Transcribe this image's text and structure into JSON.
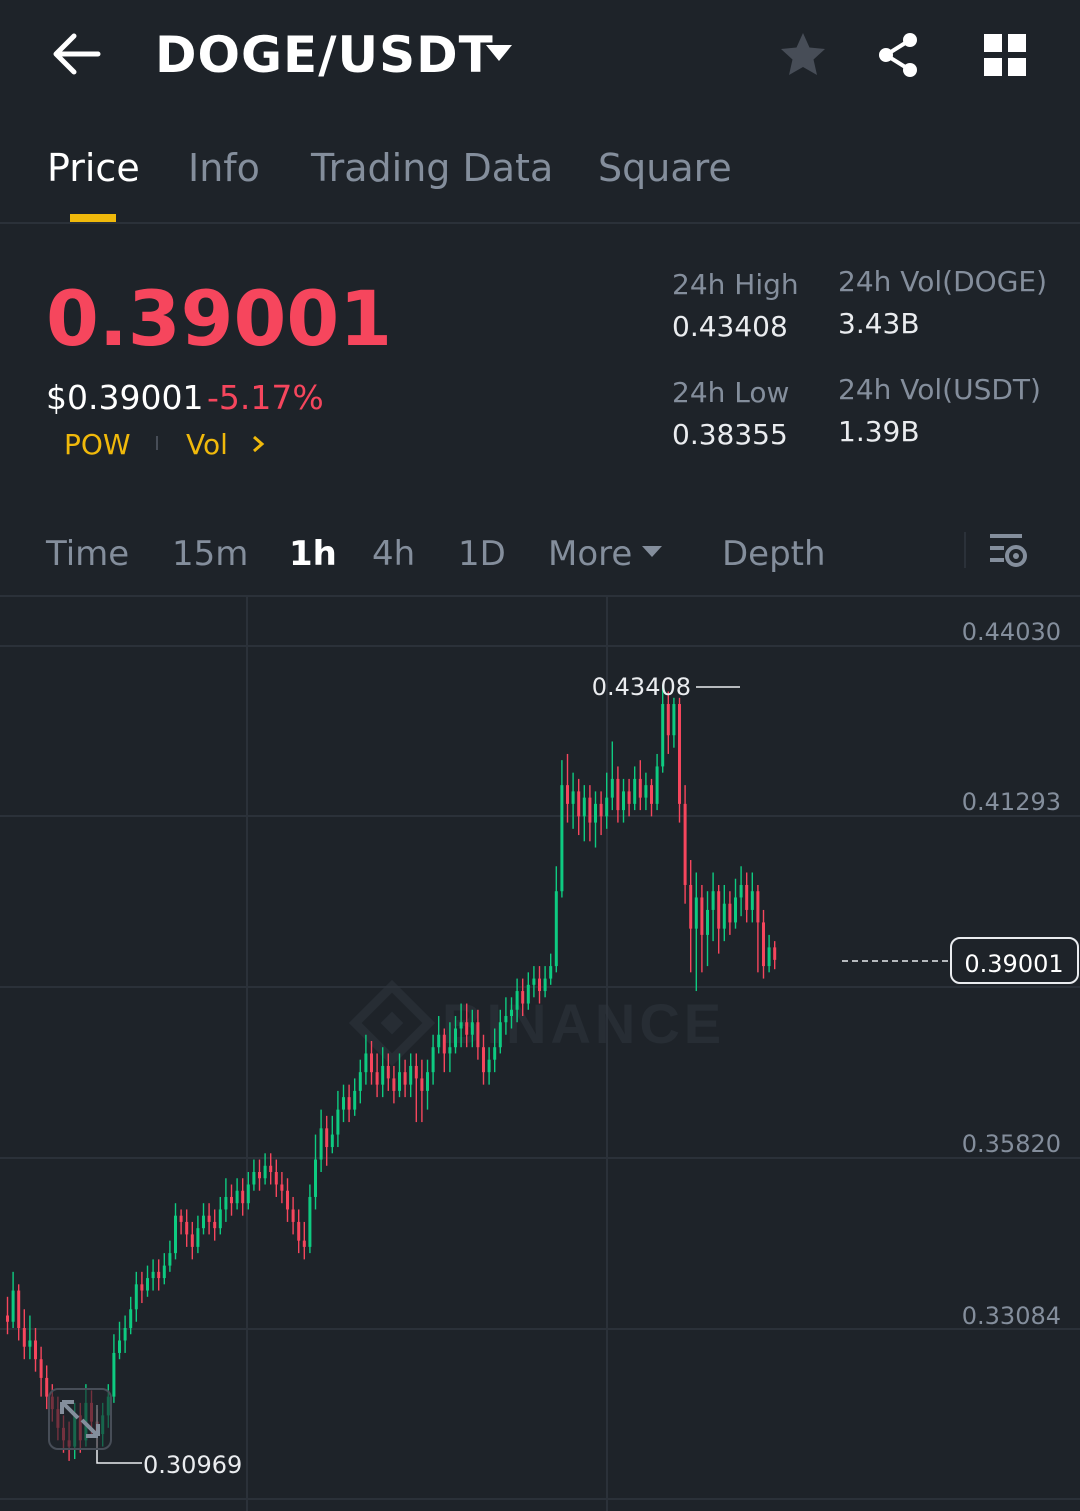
{
  "header": {
    "title": "DOGE/USDT",
    "icons": [
      "back-arrow-icon",
      "chevron-down-icon",
      "star-icon",
      "share-icon",
      "grid-icon"
    ]
  },
  "tabs": [
    {
      "label": "Price",
      "active": true
    },
    {
      "label": "Info",
      "active": false
    },
    {
      "label": "Trading Data",
      "active": false
    },
    {
      "label": "Square",
      "active": false
    }
  ],
  "price": {
    "last": "0.39001",
    "usd": "$0.39001",
    "change": "-5.17%",
    "tag_pow": "POW",
    "tag_vol": "Vol"
  },
  "stats": {
    "high_label": "24h High",
    "high_value": "0.43408",
    "low_label": "24h Low",
    "low_value": "0.38355",
    "vol_doge_label": "24h Vol(DOGE)",
    "vol_doge_value": "3.43B",
    "vol_usdt_label": "24h Vol(USDT)",
    "vol_usdt_value": "1.39B"
  },
  "intervals": {
    "time": "Time",
    "m15": "15m",
    "h1": "1h",
    "h4": "4h",
    "d1": "1D",
    "more": "More",
    "depth": "Depth",
    "active": "1h"
  },
  "colors": {
    "up": "#0ecb81",
    "down": "#f6465d",
    "accent": "#f0b90b",
    "bg": "#1e2329"
  },
  "chart": {
    "axis_labels": [
      "0.44030",
      "0.41293",
      "0.35820",
      "0.33084"
    ],
    "last_price_label": "0.39001",
    "high_marker": "0.43408",
    "low_marker": "0.30969",
    "watermark": "BINANCE"
  },
  "chart_data": {
    "type": "candlestick",
    "interval": "1h",
    "y_ticks": [
      0.4403,
      0.41293,
      0.38557,
      0.3582,
      0.33084
    ],
    "y_range": [
      0.306,
      0.448
    ],
    "last_price": 0.39001,
    "high": 0.43408,
    "low": 0.30969,
    "candles": [
      [
        0.333,
        0.332,
        0.336,
        0.33
      ],
      [
        0.332,
        0.337,
        0.34,
        0.331
      ],
      [
        0.337,
        0.331,
        0.338,
        0.329
      ],
      [
        0.331,
        0.328,
        0.334,
        0.326
      ],
      [
        0.328,
        0.329,
        0.333,
        0.326
      ],
      [
        0.329,
        0.326,
        0.331,
        0.324
      ],
      [
        0.326,
        0.323,
        0.328,
        0.32
      ],
      [
        0.323,
        0.32,
        0.325,
        0.318
      ],
      [
        0.32,
        0.318,
        0.322,
        0.316
      ],
      [
        0.318,
        0.315,
        0.32,
        0.313
      ],
      [
        0.315,
        0.313,
        0.317,
        0.311
      ],
      [
        0.313,
        0.312,
        0.316,
        0.3097
      ],
      [
        0.312,
        0.317,
        0.319,
        0.31
      ],
      [
        0.317,
        0.313,
        0.319,
        0.311
      ],
      [
        0.313,
        0.319,
        0.322,
        0.312
      ],
      [
        0.319,
        0.316,
        0.321,
        0.314
      ],
      [
        0.316,
        0.314,
        0.318,
        0.312
      ],
      [
        0.314,
        0.317,
        0.319,
        0.312
      ],
      [
        0.317,
        0.32,
        0.322,
        0.315
      ],
      [
        0.32,
        0.327,
        0.33,
        0.319
      ],
      [
        0.327,
        0.329,
        0.332,
        0.326
      ],
      [
        0.329,
        0.331,
        0.333,
        0.327
      ],
      [
        0.331,
        0.334,
        0.336,
        0.33
      ],
      [
        0.334,
        0.338,
        0.34,
        0.332
      ],
      [
        0.338,
        0.337,
        0.34,
        0.335
      ],
      [
        0.337,
        0.339,
        0.341,
        0.336
      ],
      [
        0.339,
        0.34,
        0.342,
        0.337
      ],
      [
        0.34,
        0.339,
        0.342,
        0.337
      ],
      [
        0.339,
        0.341,
        0.343,
        0.338
      ],
      [
        0.341,
        0.343,
        0.345,
        0.34
      ],
      [
        0.343,
        0.349,
        0.351,
        0.342
      ],
      [
        0.349,
        0.348,
        0.35,
        0.346
      ],
      [
        0.348,
        0.346,
        0.35,
        0.344
      ],
      [
        0.346,
        0.344,
        0.348,
        0.342
      ],
      [
        0.344,
        0.347,
        0.349,
        0.343
      ],
      [
        0.347,
        0.349,
        0.351,
        0.346
      ],
      [
        0.349,
        0.348,
        0.351,
        0.346
      ],
      [
        0.348,
        0.347,
        0.35,
        0.345
      ],
      [
        0.347,
        0.35,
        0.352,
        0.346
      ],
      [
        0.35,
        0.352,
        0.355,
        0.348
      ],
      [
        0.352,
        0.351,
        0.354,
        0.349
      ],
      [
        0.351,
        0.353,
        0.355,
        0.35
      ],
      [
        0.353,
        0.351,
        0.355,
        0.349
      ],
      [
        0.351,
        0.354,
        0.356,
        0.35
      ],
      [
        0.354,
        0.356,
        0.358,
        0.353
      ],
      [
        0.356,
        0.355,
        0.358,
        0.353
      ],
      [
        0.355,
        0.357,
        0.359,
        0.354
      ],
      [
        0.357,
        0.356,
        0.359,
        0.354
      ],
      [
        0.356,
        0.354,
        0.358,
        0.352
      ],
      [
        0.354,
        0.353,
        0.356,
        0.351
      ],
      [
        0.353,
        0.35,
        0.355,
        0.348
      ],
      [
        0.35,
        0.348,
        0.352,
        0.346
      ],
      [
        0.348,
        0.345,
        0.35,
        0.343
      ],
      [
        0.345,
        0.344,
        0.348,
        0.342
      ],
      [
        0.344,
        0.352,
        0.354,
        0.343
      ],
      [
        0.352,
        0.358,
        0.362,
        0.35
      ],
      [
        0.358,
        0.363,
        0.366,
        0.356
      ],
      [
        0.363,
        0.36,
        0.365,
        0.357
      ],
      [
        0.36,
        0.362,
        0.365,
        0.359
      ],
      [
        0.362,
        0.366,
        0.369,
        0.36
      ],
      [
        0.366,
        0.368,
        0.37,
        0.364
      ],
      [
        0.368,
        0.366,
        0.37,
        0.364
      ],
      [
        0.366,
        0.369,
        0.371,
        0.365
      ],
      [
        0.369,
        0.372,
        0.374,
        0.367
      ],
      [
        0.372,
        0.375,
        0.378,
        0.37
      ],
      [
        0.375,
        0.372,
        0.377,
        0.37
      ],
      [
        0.372,
        0.37,
        0.375,
        0.368
      ],
      [
        0.37,
        0.373,
        0.376,
        0.368
      ],
      [
        0.373,
        0.371,
        0.375,
        0.369
      ],
      [
        0.371,
        0.369,
        0.373,
        0.367
      ],
      [
        0.369,
        0.372,
        0.375,
        0.368
      ],
      [
        0.372,
        0.37,
        0.374,
        0.368
      ],
      [
        0.37,
        0.373,
        0.375,
        0.368
      ],
      [
        0.373,
        0.371,
        0.375,
        0.364
      ],
      [
        0.371,
        0.369,
        0.374,
        0.364
      ],
      [
        0.369,
        0.372,
        0.374,
        0.366
      ],
      [
        0.372,
        0.376,
        0.378,
        0.37
      ],
      [
        0.376,
        0.378,
        0.381,
        0.375
      ],
      [
        0.378,
        0.375,
        0.379,
        0.372
      ],
      [
        0.375,
        0.376,
        0.38,
        0.372
      ],
      [
        0.376,
        0.379,
        0.381,
        0.375
      ],
      [
        0.379,
        0.38,
        0.383,
        0.376
      ],
      [
        0.38,
        0.378,
        0.383,
        0.376
      ],
      [
        0.378,
        0.38,
        0.382,
        0.376
      ],
      [
        0.38,
        0.376,
        0.382,
        0.374
      ],
      [
        0.376,
        0.372,
        0.378,
        0.37
      ],
      [
        0.372,
        0.374,
        0.376,
        0.37
      ],
      [
        0.374,
        0.376,
        0.379,
        0.372
      ],
      [
        0.376,
        0.38,
        0.382,
        0.375
      ],
      [
        0.38,
        0.381,
        0.384,
        0.378
      ],
      [
        0.381,
        0.382,
        0.384,
        0.379
      ],
      [
        0.382,
        0.385,
        0.387,
        0.38
      ],
      [
        0.385,
        0.383,
        0.387,
        0.381
      ],
      [
        0.383,
        0.386,
        0.388,
        0.382
      ],
      [
        0.386,
        0.387,
        0.389,
        0.384
      ],
      [
        0.387,
        0.385,
        0.389,
        0.383
      ],
      [
        0.385,
        0.387,
        0.389,
        0.384
      ],
      [
        0.387,
        0.389,
        0.391,
        0.386
      ],
      [
        0.389,
        0.401,
        0.405,
        0.388
      ],
      [
        0.401,
        0.418,
        0.422,
        0.4
      ],
      [
        0.418,
        0.415,
        0.423,
        0.412
      ],
      [
        0.415,
        0.417,
        0.42,
        0.411
      ],
      [
        0.417,
        0.413,
        0.419,
        0.41
      ],
      [
        0.413,
        0.416,
        0.418,
        0.409
      ],
      [
        0.416,
        0.412,
        0.418,
        0.409
      ],
      [
        0.412,
        0.415,
        0.417,
        0.408
      ],
      [
        0.415,
        0.413,
        0.417,
        0.41
      ],
      [
        0.413,
        0.416,
        0.42,
        0.411
      ],
      [
        0.416,
        0.419,
        0.425,
        0.414
      ],
      [
        0.419,
        0.414,
        0.421,
        0.412
      ],
      [
        0.414,
        0.417,
        0.419,
        0.412
      ],
      [
        0.417,
        0.415,
        0.419,
        0.413
      ],
      [
        0.415,
        0.419,
        0.421,
        0.414
      ],
      [
        0.419,
        0.416,
        0.422,
        0.414
      ],
      [
        0.416,
        0.418,
        0.42,
        0.414
      ],
      [
        0.418,
        0.415,
        0.419,
        0.413
      ],
      [
        0.415,
        0.421,
        0.423,
        0.414
      ],
      [
        0.421,
        0.431,
        0.4341,
        0.42
      ],
      [
        0.431,
        0.426,
        0.433,
        0.423
      ],
      [
        0.426,
        0.431,
        0.432,
        0.424
      ],
      [
        0.431,
        0.415,
        0.432,
        0.412
      ],
      [
        0.415,
        0.402,
        0.418,
        0.399
      ],
      [
        0.402,
        0.395,
        0.406,
        0.388
      ],
      [
        0.395,
        0.4,
        0.404,
        0.385
      ],
      [
        0.4,
        0.394,
        0.402,
        0.388
      ],
      [
        0.394,
        0.398,
        0.401,
        0.389
      ],
      [
        0.398,
        0.401,
        0.404,
        0.393
      ],
      [
        0.401,
        0.395,
        0.402,
        0.391
      ],
      [
        0.395,
        0.399,
        0.402,
        0.393
      ],
      [
        0.399,
        0.396,
        0.401,
        0.394
      ],
      [
        0.396,
        0.4,
        0.403,
        0.395
      ],
      [
        0.4,
        0.402,
        0.405,
        0.397
      ],
      [
        0.402,
        0.398,
        0.404,
        0.396
      ],
      [
        0.398,
        0.401,
        0.404,
        0.396
      ],
      [
        0.401,
        0.396,
        0.402,
        0.388
      ],
      [
        0.396,
        0.389,
        0.398,
        0.387
      ],
      [
        0.389,
        0.392,
        0.394,
        0.388
      ],
      [
        0.392,
        0.39,
        0.393,
        0.3885
      ]
    ]
  }
}
